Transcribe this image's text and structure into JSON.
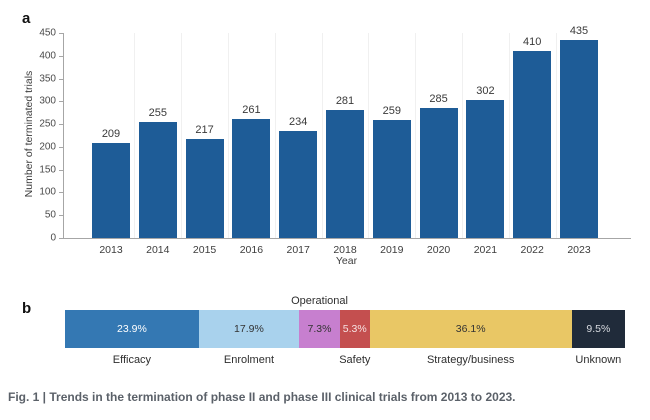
{
  "figure": {
    "panel_a_label": "a",
    "panel_b_label": "b",
    "caption": "Fig. 1 | Trends in the termination of phase II and phase III clinical trials from 2013 to 2023."
  },
  "chart_data": [
    {
      "type": "bar",
      "title": "",
      "xlabel": "Year",
      "ylabel": "Number of terminated trials",
      "categories": [
        "2013",
        "2014",
        "2015",
        "2016",
        "2017",
        "2018",
        "2019",
        "2020",
        "2021",
        "2022",
        "2023"
      ],
      "values": [
        209,
        255,
        217,
        261,
        234,
        281,
        259,
        285,
        302,
        410,
        435
      ],
      "ylim": [
        0,
        450
      ],
      "ytick_step": 50,
      "yticks": [
        0,
        50,
        100,
        150,
        200,
        250,
        300,
        350,
        400,
        450
      ],
      "bar_color": "#1e5c97",
      "grid": "faint-vertical",
      "legend_position": "none",
      "data_labels": true
    },
    {
      "type": "stacked-bar-horizontal",
      "title": "",
      "total": 100,
      "segments": [
        {
          "label": "Efficacy",
          "value": 23.9,
          "value_label": "23.9%",
          "color": "#3478b3",
          "text_color": "#ffffff",
          "label_position": "below"
        },
        {
          "label": "Enrolment",
          "value": 17.9,
          "value_label": "17.9%",
          "color": "#a9d2ed",
          "text_color": "#333333",
          "label_position": "below"
        },
        {
          "label": "Operational",
          "value": 7.3,
          "value_label": "7.3%",
          "color": "#c77fcf",
          "text_color": "#333333",
          "label_position": "above"
        },
        {
          "label": "Safety",
          "value": 5.3,
          "value_label": "5.3%",
          "color": "#c44f4f",
          "text_color": "#f6e2e2",
          "label_position": "below"
        },
        {
          "label": "Strategy/business",
          "value": 36.1,
          "value_label": "36.1%",
          "color": "#e9c765",
          "text_color": "#333333",
          "label_position": "below"
        },
        {
          "label": "Unknown",
          "value": 9.5,
          "value_label": "9.5%",
          "color": "#202b3a",
          "text_color": "#d8dbe0",
          "label_position": "below"
        }
      ]
    }
  ]
}
